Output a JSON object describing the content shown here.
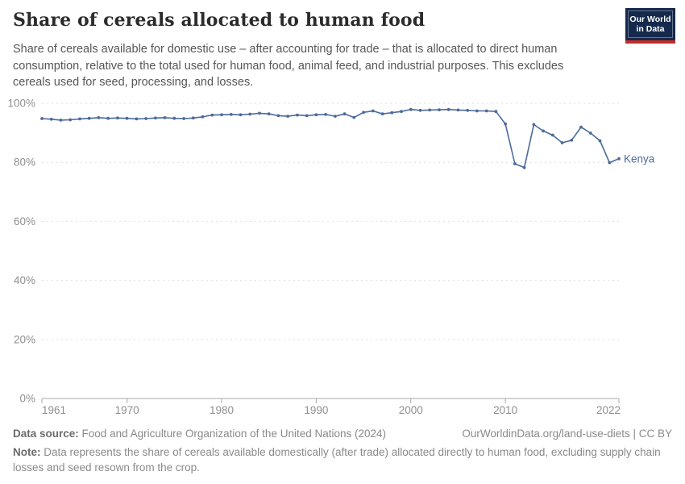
{
  "header": {
    "title": "Share of cereals allocated to human food",
    "subtitle": "Share of cereals available for domestic use – after accounting for trade – that is allocated to direct human consumption, relative to the total used for human food, animal feed, and industrial purposes. This excludes cereals used for seed, processing, and losses.",
    "logo": {
      "line1": "Our World",
      "line2": "in Data",
      "bg_color": "#15294d",
      "accent_color": "#c32d27"
    }
  },
  "chart_data": {
    "type": "line",
    "title": "Share of cereals allocated to human food",
    "xlabel": "",
    "ylabel": "",
    "xlim": [
      1961,
      2022
    ],
    "ylim": [
      0,
      100
    ],
    "grid": "horizontal-dashed",
    "legend_position": "end-of-line-label",
    "x_ticks": [
      1961,
      1970,
      1980,
      1990,
      2000,
      2010,
      2022
    ],
    "y_ticks": [
      0,
      20,
      40,
      60,
      80,
      100
    ],
    "y_tick_suffix": "%",
    "series": [
      {
        "name": "Kenya",
        "color": "#4c6a9c",
        "x": [
          1961,
          1962,
          1963,
          1964,
          1965,
          1966,
          1967,
          1968,
          1969,
          1970,
          1971,
          1972,
          1973,
          1974,
          1975,
          1976,
          1977,
          1978,
          1979,
          1980,
          1981,
          1982,
          1983,
          1984,
          1985,
          1986,
          1987,
          1988,
          1989,
          1990,
          1991,
          1992,
          1993,
          1994,
          1995,
          1996,
          1997,
          1998,
          1999,
          2000,
          2001,
          2002,
          2003,
          2004,
          2005,
          2006,
          2007,
          2008,
          2009,
          2010,
          2011,
          2012,
          2013,
          2014,
          2015,
          2016,
          2017,
          2018,
          2019,
          2020,
          2021,
          2022
        ],
        "values": [
          94.8,
          94.6,
          94.3,
          94.4,
          94.7,
          94.9,
          95.1,
          94.9,
          95.0,
          94.9,
          94.7,
          94.8,
          95.0,
          95.1,
          94.9,
          94.8,
          95.0,
          95.4,
          96.0,
          96.1,
          96.2,
          96.1,
          96.3,
          96.6,
          96.4,
          95.8,
          95.6,
          96.0,
          95.8,
          96.1,
          96.2,
          95.6,
          96.4,
          95.2,
          96.9,
          97.4,
          96.4,
          96.8,
          97.2,
          97.9,
          97.6,
          97.7,
          97.8,
          97.9,
          97.7,
          97.6,
          97.4,
          97.4,
          97.2,
          93.0,
          79.5,
          78.2,
          92.8,
          90.6,
          89.2,
          86.6,
          87.5,
          91.9,
          89.9,
          87.3,
          79.9,
          81.2
        ]
      }
    ]
  },
  "footer": {
    "source_label": "Data source:",
    "source_text": "Food and Agriculture Organization of the United Nations (2024)",
    "link_text": "OurWorldinData.org/land-use-diets | CC BY",
    "note_label": "Note:",
    "note_text": "Data represents the share of cereals available domestically (after trade) allocated directly to human food, excluding supply chain losses and seed resown from the crop."
  }
}
